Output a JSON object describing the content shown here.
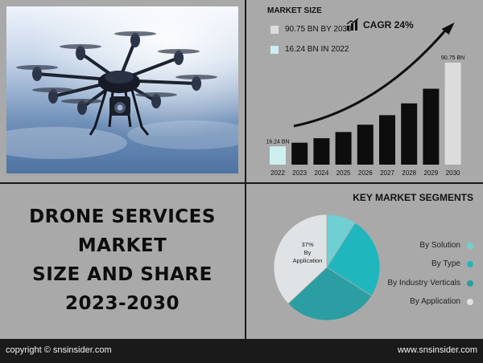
{
  "market_size": {
    "title": "MARKET SIZE",
    "legend": [
      {
        "label": "90.75 BN BY 2030",
        "color": "#dcdcdc"
      },
      {
        "label": "16.24 BN IN 2022",
        "color": "#cdeff0"
      }
    ],
    "cagr_label": "CAGR 24%",
    "cagr_icon": "bar-growth-icon"
  },
  "title": {
    "line1": "DRONE SERVICES",
    "line2": "MARKET",
    "line3": "SIZE AND SHARE",
    "line4": "2023-2030"
  },
  "segments": {
    "title": "KEY MARKET SEGMENTS",
    "items": [
      {
        "label": "By Solution",
        "color": "#6fcfd3"
      },
      {
        "label": "By Type",
        "color": "#1fb7bd"
      },
      {
        "label": "By Industry Verticals",
        "color": "#2a9ea3"
      },
      {
        "label": "By Application",
        "color": "#dfe3e6"
      }
    ],
    "pie_label": "37% By Application"
  },
  "footer": {
    "copyright": "copyright © snsinsider.com",
    "website": "www.snsinsider.com"
  },
  "chart_data": [
    {
      "type": "bar",
      "categories": [
        "2022",
        "2023",
        "2024",
        "2025",
        "2026",
        "2027",
        "2028",
        "2029",
        "2030"
      ],
      "values": [
        16.24,
        19.5,
        23.5,
        29,
        35.5,
        44,
        54.5,
        67.5,
        90.75
      ],
      "data_labels": {
        "2022": "16.24 BN",
        "2030": "90.75 BN"
      },
      "colors": {
        "first": "#cdeff0",
        "middle": "#0d0d0d",
        "last": "#dcdcdc"
      },
      "trend_arrow": true,
      "ylim": [
        0,
        100
      ]
    },
    {
      "type": "pie",
      "labels": [
        "By Solution",
        "By Type",
        "By Industry Verticals",
        "By Application"
      ],
      "values": [
        9,
        25,
        29,
        37
      ],
      "colors": [
        "#6fcfd3",
        "#1fb7bd",
        "#2a9ea3",
        "#dfe3e6"
      ]
    }
  ]
}
